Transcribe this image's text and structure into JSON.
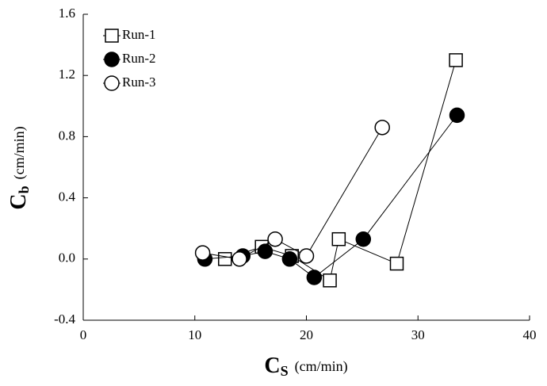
{
  "chart_data": {
    "type": "scatter",
    "xlabel": {
      "symbol": "C",
      "subscript": "S",
      "unit": "(cm/min)"
    },
    "ylabel": {
      "symbol": "C",
      "subscript": "b",
      "unit": "(cm/min)"
    },
    "xlim": [
      0,
      40
    ],
    "xticks": [
      0,
      10,
      20,
      30,
      40
    ],
    "ylim": [
      -0.4,
      1.6
    ],
    "yticks": [
      -0.4,
      {
        "value": 0,
        "label": "0.0"
      },
      0.4,
      0.8,
      1.2,
      1.6
    ],
    "legend": "top-left",
    "series": [
      {
        "name": "Run-1",
        "marker": "square",
        "color": "#000000",
        "x": [
          12.7,
          16.0,
          18.7,
          22.1,
          22.9,
          28.1,
          33.4
        ],
        "values": [
          0.0,
          0.08,
          0.02,
          -0.14,
          0.13,
          -0.03,
          1.3
        ]
      },
      {
        "name": "Run-2",
        "marker": "filled-circle",
        "color": "#000000",
        "x": [
          10.9,
          14.3,
          16.3,
          18.5,
          20.7,
          25.1,
          33.5
        ],
        "values": [
          0.0,
          0.02,
          0.05,
          0.0,
          -0.12,
          0.13,
          0.94
        ]
      },
      {
        "name": "Run-3",
        "marker": "circle",
        "color": "#000000",
        "x": [
          10.7,
          14.0,
          17.2,
          20.0,
          26.8
        ],
        "values": [
          0.04,
          0.0,
          0.13,
          0.02,
          0.86
        ]
      }
    ]
  }
}
